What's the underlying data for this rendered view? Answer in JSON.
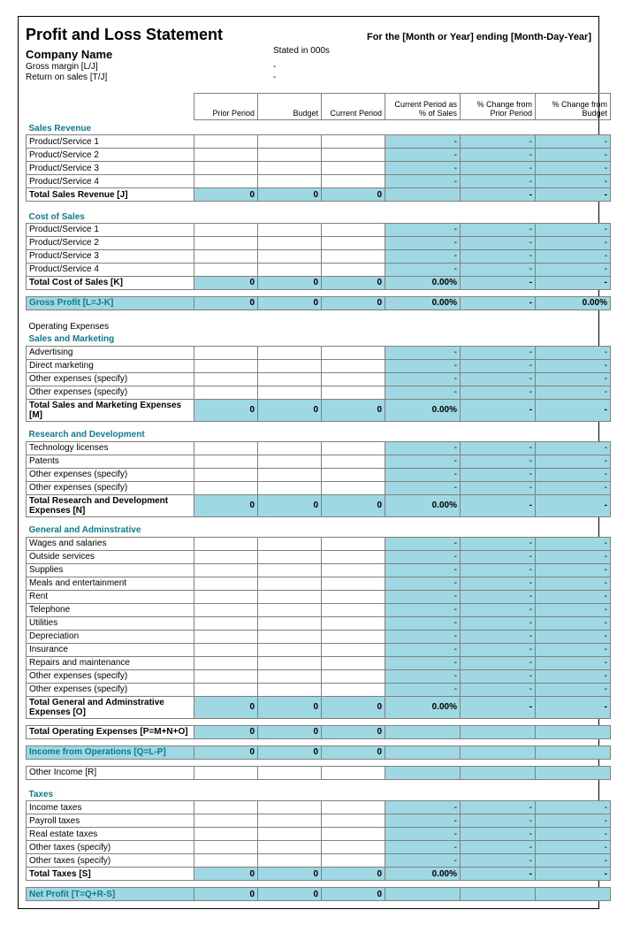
{
  "colors": {
    "highlight": "#9fd8e2",
    "section_text": "#0e7a8a",
    "border": "#808080",
    "background": "#ffffff"
  },
  "header": {
    "title": "Profit and Loss Statement",
    "period": "For the [Month or Year] ending [Month-Day-Year]",
    "company": "Company Name",
    "stated": "Stated in 000s",
    "gross_margin_label": "Gross margin  [L/J]",
    "gross_margin_val": "-",
    "return_on_sales_label": "Return on sales  [T/J]",
    "return_on_sales_val": "-"
  },
  "columns": [
    "Prior Period",
    "Budget",
    "Current Period",
    "Current Period as % of Sales",
    "% Change from Prior Period",
    "% Change from Budget"
  ],
  "sections": {
    "sales": {
      "title": "Sales Revenue",
      "rows": [
        "Product/Service 1",
        "Product/Service 2",
        "Product/Service 3",
        "Product/Service 4"
      ],
      "total_label": "Total Sales Revenue  [J]",
      "total": {
        "prior": "0",
        "budget": "0",
        "current": "0",
        "pct_sales": "",
        "chg_prior": "-",
        "chg_budget": "-"
      }
    },
    "cost": {
      "title": "Cost of Sales",
      "rows": [
        "Product/Service 1",
        "Product/Service 2",
        "Product/Service 3",
        "Product/Service 4"
      ],
      "total_label": "Total Cost of Sales  [K]",
      "total": {
        "prior": "0",
        "budget": "0",
        "current": "0",
        "pct_sales": "0.00%",
        "chg_prior": "-",
        "chg_budget": "-"
      }
    },
    "gross_profit": {
      "label": "Gross Profit  [L=J-K]",
      "vals": {
        "prior": "0",
        "budget": "0",
        "current": "0",
        "pct_sales": "0.00%",
        "chg_prior": "-",
        "chg_budget": "0.00%"
      }
    },
    "opex_title": "Operating Expenses",
    "sm": {
      "title": "Sales and Marketing",
      "rows": [
        "Advertising",
        "Direct marketing",
        "Other expenses (specify)",
        "Other expenses (specify)"
      ],
      "total_label": "Total Sales and Marketing Expenses  [M]",
      "total": {
        "prior": "0",
        "budget": "0",
        "current": "0",
        "pct_sales": "0.00%",
        "chg_prior": "-",
        "chg_budget": "-"
      }
    },
    "rd": {
      "title": "Research and Development",
      "rows": [
        "Technology licenses",
        "Patents",
        "Other expenses (specify)",
        "Other expenses (specify)"
      ],
      "total_label": "Total Research and Development Expenses  [N]",
      "total": {
        "prior": "0",
        "budget": "0",
        "current": "0",
        "pct_sales": "0.00%",
        "chg_prior": "-",
        "chg_budget": "-"
      }
    },
    "ga": {
      "title": "General and Adminstrative",
      "rows": [
        "Wages and salaries",
        "Outside services",
        "Supplies",
        "Meals and entertainment",
        "Rent",
        "Telephone",
        "Utilities",
        "Depreciation",
        "Insurance",
        "Repairs and maintenance",
        "Other expenses (specify)",
        "Other expenses (specify)"
      ],
      "total_label": "Total General and Adminstrative Expenses  [O]",
      "total": {
        "prior": "0",
        "budget": "0",
        "current": "0",
        "pct_sales": "0.00%",
        "chg_prior": "-",
        "chg_budget": "-"
      }
    },
    "total_opex": {
      "label": "Total Operating Expenses  [P=M+N+O]",
      "vals": {
        "prior": "0",
        "budget": "0",
        "current": "0",
        "pct_sales": "",
        "chg_prior": "",
        "chg_budget": ""
      }
    },
    "income_ops": {
      "label": "Income from Operations  [Q=L-P]",
      "vals": {
        "prior": "0",
        "budget": "0",
        "current": "0",
        "pct_sales": "",
        "chg_prior": "",
        "chg_budget": ""
      }
    },
    "other_income": {
      "label": "Other Income  [R]"
    },
    "taxes": {
      "title": "Taxes",
      "rows": [
        "Income taxes",
        "Payroll taxes",
        "Real estate taxes",
        "Other taxes (specify)",
        "Other taxes (specify)"
      ],
      "total_label": "Total Taxes  [S]",
      "total": {
        "prior": "0",
        "budget": "0",
        "current": "0",
        "pct_sales": "0.00%",
        "chg_prior": "-",
        "chg_budget": "-"
      }
    },
    "net_profit": {
      "label": "Net Profit  [T=Q+R-S]",
      "vals": {
        "prior": "0",
        "budget": "0",
        "current": "0",
        "pct_sales": "",
        "chg_prior": "",
        "chg_budget": ""
      }
    }
  }
}
